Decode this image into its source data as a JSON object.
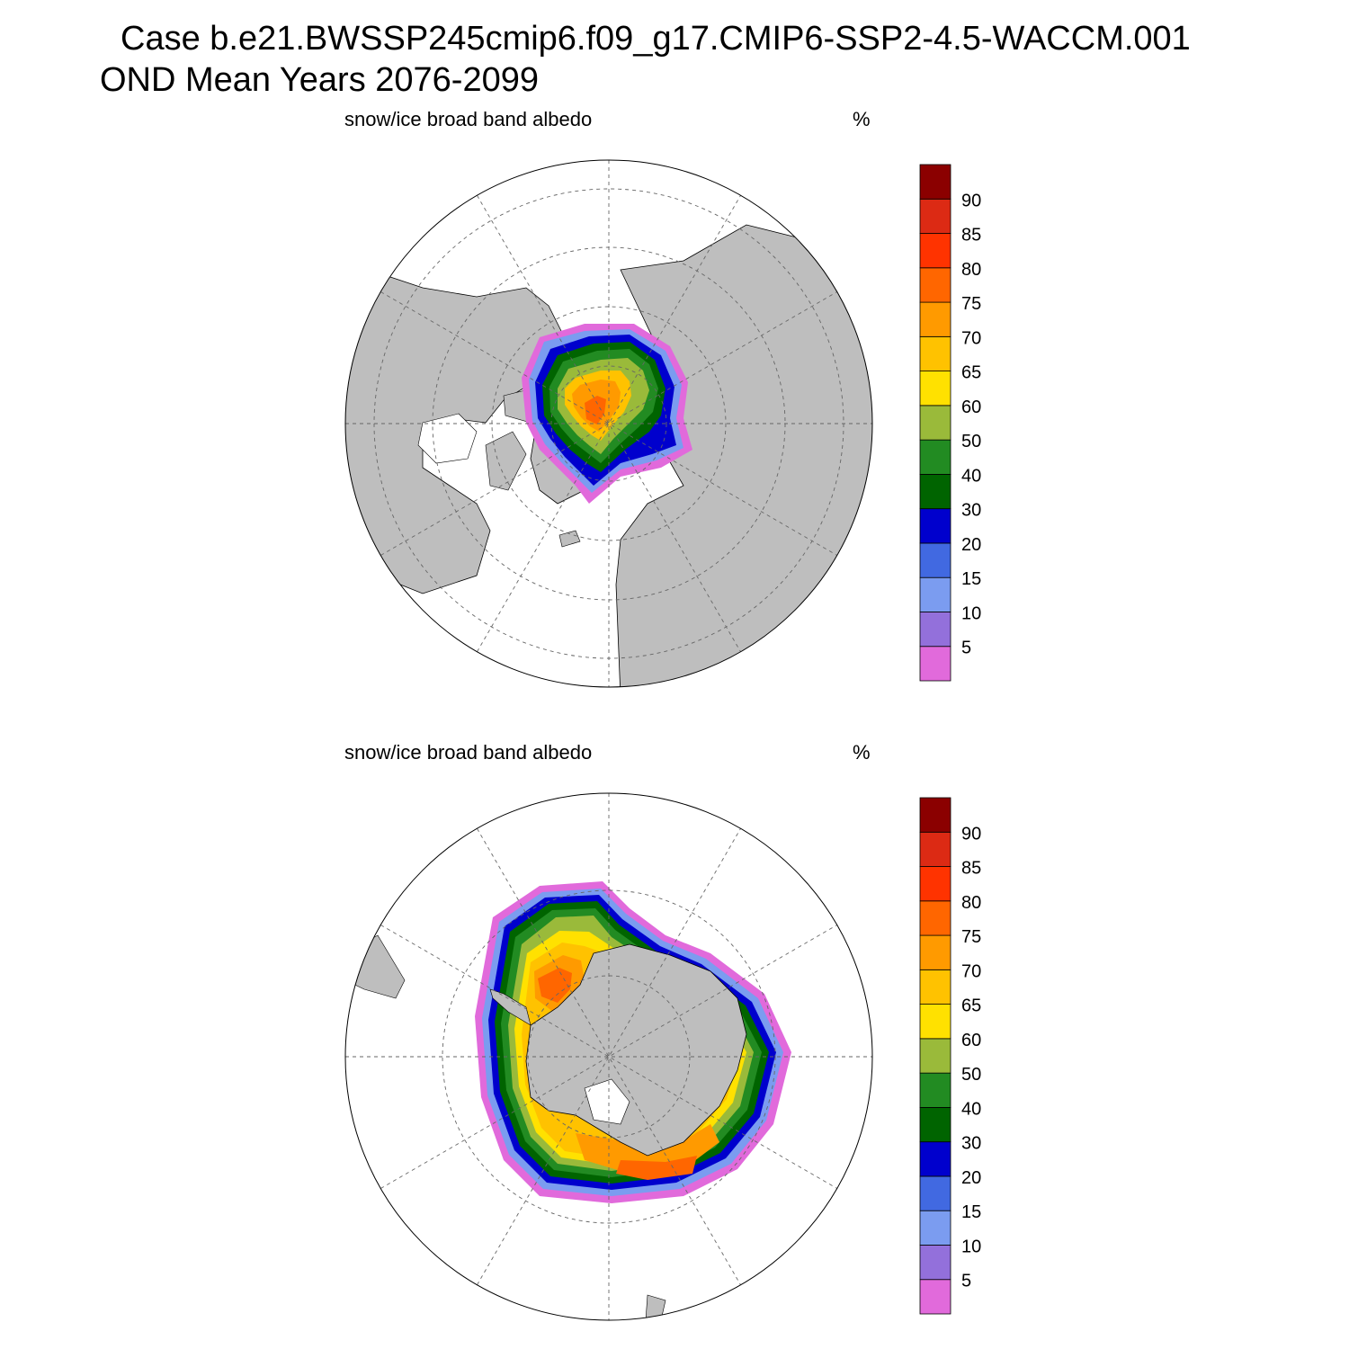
{
  "header": {
    "case_line": "Case b.e21.BWSSP245cmip6.f09_g17.CMIP6-SSP2-4.5-WACCM.001",
    "period_line": "OND Mean   Years 2076-2099"
  },
  "panels": [
    {
      "hemisphere": "north",
      "variable": "snow/ice broad band albedo",
      "units": "%"
    },
    {
      "hemisphere": "south",
      "variable": "snow/ice broad band albedo",
      "units": "%"
    }
  ],
  "colorbar": {
    "labels": [
      "5",
      "10",
      "15",
      "20",
      "30",
      "40",
      "50",
      "60",
      "65",
      "70",
      "75",
      "80",
      "85",
      "90"
    ],
    "colors": [
      "#e16adb",
      "#9370db",
      "#7b9cf0",
      "#4169e1",
      "#0000cd",
      "#006400",
      "#228b22",
      "#9aba3a",
      "#ffe100",
      "#ffc200",
      "#ff9a00",
      "#ff6600",
      "#ff3300",
      "#dc2a14",
      "#8b0000"
    ]
  },
  "map_style": {
    "land": "#bebebe",
    "ocean": "#ffffff",
    "gridline": "#666666"
  }
}
